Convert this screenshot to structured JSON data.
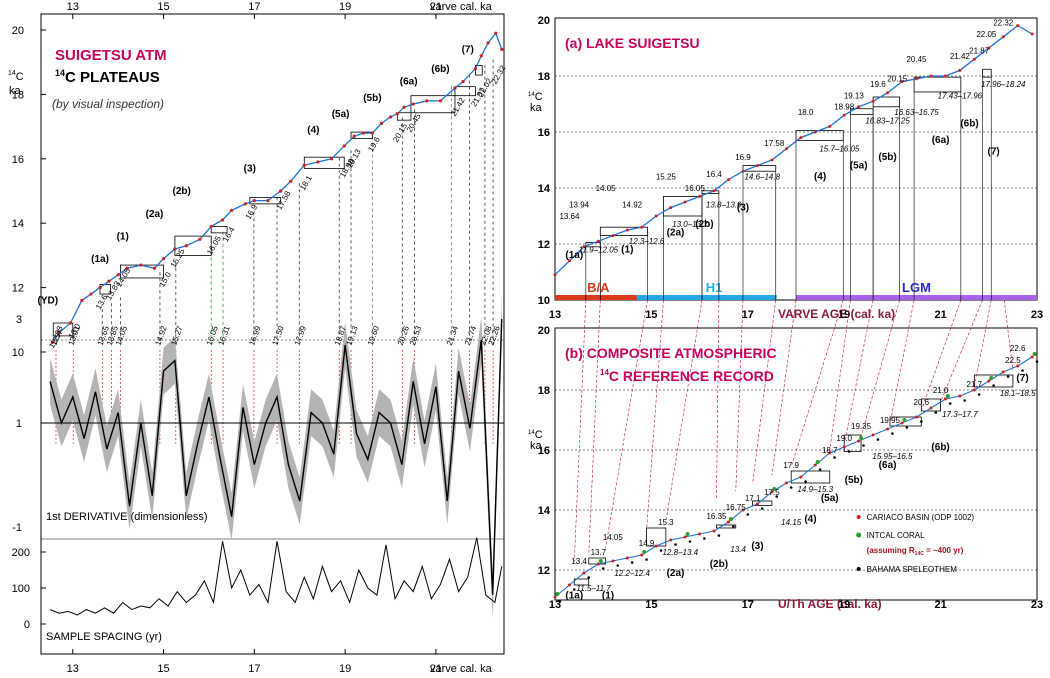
{
  "left": {
    "top_axis_label": "varve cal. ka",
    "bottom_axis_label": "varve cal. ka",
    "x_ticks": [
      "13",
      "15",
      "17",
      "19",
      "21"
    ],
    "y_ticks": [
      "10",
      "12",
      "14",
      "16",
      "18",
      "20"
    ],
    "y_unit_sup": "14",
    "y_unit_a": "C",
    "y_unit_b": "ka",
    "title1": "SUIGETSU  ATM",
    "title2_sup": "14",
    "title2_rest": "C PLATEAUS",
    "subtitle": "(by visual inspection)",
    "plateaus": [
      "(YD)",
      "(1a)",
      "(1)",
      "(2a)",
      "(2b)",
      "(3)",
      "(4)",
      "(5a)",
      "(5b)",
      "(6a)",
      "(6b)",
      "(7)"
    ],
    "boundary_labels": [
      "12.57",
      "13.0",
      "13.6",
      "13.83",
      "14.05",
      "15.0",
      "15.25",
      "16.05",
      "16.4",
      "16.9",
      "17.58",
      "18.1",
      "18.98",
      "19.13",
      "19.6",
      "20.15",
      "20.45",
      "21.42",
      "21.87",
      "22.02",
      "22.32"
    ],
    "deriv_labels": [
      "12.63",
      "13.01",
      "13.65",
      "13.85",
      "14.05",
      "14.92",
      "15.27",
      "16.05",
      "16.31",
      "16.99",
      "17.50",
      "17.99",
      "18.87",
      "19.13",
      "19.60",
      "20.26",
      "20.53",
      "21.34",
      "21.74",
      "22.08",
      "22.26"
    ],
    "deriv_ticks": [
      "3",
      "1",
      "-1"
    ],
    "deriv_label": "1st DERIVATIVE (dimensionless)",
    "spacing_ticks": [
      "200",
      "100",
      "0"
    ],
    "spacing_label": "SAMPLE SPACING (yr)"
  },
  "right": {
    "a_title": "(a)  LAKE SUIGETSU",
    "b_title1": "(b)  COMPOSITE  ATMOSPHERIC",
    "b_title2_sup": "14",
    "b_title2_rest": "C  REFERENCE  RECORD",
    "x_ticks": [
      "13",
      "15",
      "17",
      "19",
      "21",
      "23"
    ],
    "y_ticks_a": [
      "10",
      "12",
      "14",
      "16",
      "18",
      "20"
    ],
    "y_ticks_b": [
      "12",
      "14",
      "16",
      "18",
      "20"
    ],
    "y_unit_sup": "14",
    "y_unit_a": "C",
    "y_unit_b": "ka",
    "varve_axis": "VARVE AGE (cal. ka)",
    "uth_axis": "U/Th  AGE  (cal. ka)",
    "periods": [
      "B/A",
      "H1",
      "LGM"
    ],
    "a_plateaus": [
      "(1a)",
      "(1)",
      "(2a)",
      "(2b)",
      "(3)",
      "(4)",
      "(5a)",
      "(5b)",
      "(6a)",
      "(6b)",
      "(7)"
    ],
    "a_ages": [
      "13.64",
      "13.94",
      "14.05",
      "14.92",
      "15.25",
      "16.05",
      "16.4",
      "16.9",
      "17.58",
      "18.0",
      "18.98",
      "19.13",
      "19.6",
      "20.15",
      "20.45",
      "21.42",
      "21.87",
      "22.05",
      "22.32"
    ],
    "a_ranges": [
      "11.9–12.05",
      "12.3–12.6",
      "13.0–13.7",
      "13.8–13.9",
      "14.6–14.8",
      "15.7–16.05",
      "16.83–17.25",
      "16.63–16.75",
      "17.43–17.96",
      "17.96–18.24"
    ],
    "b_plateaus": [
      "(1a)",
      "(1)",
      "(2a)",
      "(2b)",
      "(3)",
      "(4)",
      "(5a)",
      "(5b)",
      "(6a)",
      "(6b)",
      "(7)"
    ],
    "b_ages": [
      "13.4",
      "13.7",
      "14.05",
      "14.9",
      "15.3",
      "16.35",
      "16.75",
      "17.1",
      "17.5",
      "17.9",
      "18.7",
      "19.0",
      "19.35",
      "19.95",
      "20.6",
      "21.0",
      "21.7",
      "22.5",
      "22.6"
    ],
    "b_ranges": [
      "11.5–11.7",
      "12.2–12.4",
      "12.8–13.4",
      "13.4",
      "14.15",
      "14.9–15.3",
      "15.95–16.5",
      "17.3–17.7",
      "18.1–18.5"
    ],
    "legend": [
      "CARIACO BASIN  (ODP 1002)",
      "INTCAL CORAL",
      "(assuming R",
      "= ~400 yr)",
      "BAHAMA SPELEOTHEM"
    ],
    "legend_sub": "14C"
  },
  "colors": {
    "title": "#c8005a",
    "series": "#1e6fd9",
    "points": "#cc2020",
    "green": "#2aa02a",
    "ba": "#d83a1a",
    "h1": "#27a7e6",
    "lgm": "#a862e6",
    "shade": "#b4b4b4"
  },
  "chart_data": [
    {
      "type": "line",
      "title": "SUIGETSU ATM 14C PLATEAUS",
      "xlabel": "varve cal. ka",
      "ylabel": "14C ka",
      "xlim": [
        12.3,
        22.5
      ],
      "ylim": [
        10,
        20
      ],
      "x": [
        12.55,
        12.7,
        12.95,
        13.2,
        13.4,
        13.6,
        13.8,
        14.0,
        14.2,
        14.5,
        14.8,
        15.0,
        15.25,
        15.5,
        15.8,
        16.05,
        16.3,
        16.5,
        16.8,
        17.0,
        17.3,
        17.58,
        17.8,
        18.1,
        18.4,
        18.7,
        18.98,
        19.2,
        19.4,
        19.6,
        19.8,
        20.0,
        20.15,
        20.3,
        20.5,
        20.8,
        21.1,
        21.42,
        21.6,
        21.87,
        22.0,
        22.15,
        22.32,
        22.45
      ],
      "series": [
        {
          "name": "",
          "values": [
            10.3,
            10.6,
            10.9,
            11.6,
            11.8,
            12.0,
            12.2,
            12.4,
            12.6,
            12.7,
            12.6,
            12.9,
            13.2,
            13.3,
            13.5,
            13.9,
            14.1,
            14.4,
            14.6,
            14.7,
            14.7,
            15.0,
            15.3,
            15.8,
            15.9,
            16.0,
            16.4,
            16.7,
            16.8,
            16.8,
            17.1,
            17.3,
            17.4,
            17.6,
            17.7,
            17.8,
            17.8,
            18.2,
            18.4,
            18.8,
            19.2,
            19.6,
            19.9,
            19.4
          ]
        }
      ]
    },
    {
      "type": "area",
      "title": "",
      "xlabel": "",
      "ylabel": "1st DERIVATIVE (dimensionless)",
      "xlim": [
        12.3,
        22.5
      ],
      "ylim": [
        -2.5,
        3.2
      ],
      "x": [
        12.5,
        12.75,
        13.0,
        13.25,
        13.5,
        13.75,
        14.0,
        14.25,
        14.5,
        14.75,
        15.0,
        15.25,
        15.5,
        15.75,
        16.0,
        16.25,
        16.5,
        16.75,
        17.0,
        17.25,
        17.5,
        17.75,
        18.0,
        18.25,
        18.5,
        18.75,
        19.0,
        19.25,
        19.5,
        19.75,
        20.0,
        20.25,
        20.5,
        20.75,
        21.0,
        21.25,
        21.5,
        21.75,
        22.0,
        22.25,
        22.45
      ],
      "series": [
        {
          "name": "",
          "values": [
            1.8,
            1.0,
            1.5,
            0.7,
            1.6,
            0.5,
            1.2,
            -0.6,
            1.0,
            -0.4,
            2.0,
            2.2,
            -0.4,
            0.6,
            1.5,
            0.3,
            -0.8,
            1.3,
            0.2,
            1.0,
            1.5,
            0.2,
            -0.5,
            1.2,
            1.0,
            0.4,
            2.5,
            0.8,
            0.3,
            1.2,
            1.0,
            0.2,
            1.8,
            0.6,
            1.7,
            -0.5,
            2.0,
            0.9,
            2.6,
            -2.3,
            3.0
          ]
        }
      ]
    },
    {
      "type": "line",
      "title": "",
      "xlabel": "varve cal. ka",
      "ylabel": "SAMPLE SPACING (yr)",
      "xlim": [
        12.3,
        22.5
      ],
      "ylim": [
        0,
        250
      ],
      "x": [
        12.5,
        12.7,
        12.9,
        13.1,
        13.3,
        13.5,
        13.7,
        13.9,
        14.1,
        14.3,
        14.5,
        14.7,
        14.9,
        15.1,
        15.3,
        15.5,
        15.7,
        15.9,
        16.1,
        16.3,
        16.5,
        16.7,
        16.9,
        17.1,
        17.3,
        17.5,
        17.7,
        17.9,
        18.1,
        18.3,
        18.5,
        18.7,
        18.9,
        19.1,
        19.3,
        19.5,
        19.7,
        19.9,
        20.1,
        20.3,
        20.5,
        20.7,
        20.9,
        21.1,
        21.3,
        21.5,
        21.7,
        21.9,
        22.1,
        22.3,
        22.45
      ],
      "series": [
        {
          "name": "",
          "values": [
            40,
            30,
            35,
            25,
            40,
            30,
            45,
            30,
            60,
            40,
            50,
            45,
            70,
            50,
            90,
            60,
            80,
            120,
            60,
            230,
            100,
            150,
            80,
            110,
            60,
            230,
            90,
            60,
            130,
            70,
            160,
            90,
            120,
            60,
            150,
            100,
            80,
            220,
            70,
            120,
            90,
            160,
            70,
            110,
            180,
            90,
            130,
            240,
            80,
            60,
            160
          ]
        }
      ]
    },
    {
      "type": "line",
      "title": "(a) LAKE SUIGETSU",
      "xlabel": "VARVE AGE (cal. ka)",
      "ylabel": "14C ka",
      "xlim": [
        13,
        23
      ],
      "ylim": [
        10,
        20
      ],
      "x": [
        13.0,
        13.3,
        13.6,
        13.9,
        14.2,
        14.5,
        14.8,
        15.1,
        15.4,
        15.7,
        16.0,
        16.3,
        16.6,
        16.9,
        17.2,
        17.5,
        17.8,
        18.1,
        18.4,
        18.7,
        19.0,
        19.3,
        19.6,
        19.9,
        20.2,
        20.5,
        20.8,
        21.1,
        21.4,
        21.7,
        22.0,
        22.3,
        22.6,
        22.9
      ],
      "series": [
        {
          "name": "",
          "values": [
            10.9,
            11.4,
            11.9,
            12.1,
            12.3,
            12.5,
            12.6,
            13.0,
            13.3,
            13.5,
            13.7,
            13.9,
            14.3,
            14.6,
            14.8,
            15.0,
            15.4,
            15.8,
            16.0,
            16.2,
            16.6,
            16.9,
            17.1,
            17.4,
            17.8,
            17.9,
            18.0,
            18.0,
            18.2,
            18.6,
            19.0,
            19.4,
            19.8,
            19.5
          ]
        }
      ]
    },
    {
      "type": "scatter",
      "title": "(b) COMPOSITE ATMOSPHERIC 14C REFERENCE RECORD",
      "xlabel": "U/Th AGE (cal. ka)",
      "ylabel": "14C ka",
      "xlim": [
        13,
        23
      ],
      "ylim": [
        11,
        20
      ],
      "x": [
        13.0,
        13.3,
        13.6,
        13.9,
        14.2,
        14.5,
        14.8,
        15.1,
        15.4,
        15.7,
        16.0,
        16.3,
        16.6,
        16.9,
        17.2,
        17.5,
        17.8,
        18.1,
        18.4,
        18.7,
        19.0,
        19.3,
        19.6,
        19.9,
        20.2,
        20.5,
        20.8,
        21.1,
        21.4,
        21.7,
        22.0,
        22.3,
        22.6,
        22.9
      ],
      "series": [
        {
          "name": "CARIACO BASIN  (ODP 1002)",
          "values": [
            11.1,
            11.5,
            11.9,
            12.2,
            12.3,
            12.4,
            12.5,
            12.8,
            13.0,
            13.1,
            13.2,
            13.3,
            13.6,
            14.0,
            14.2,
            14.6,
            14.9,
            15.1,
            15.5,
            15.9,
            16.1,
            16.3,
            16.5,
            16.7,
            16.9,
            17.1,
            17.4,
            17.7,
            17.8,
            18.0,
            18.3,
            18.6,
            18.8,
            19.1
          ]
        }
      ]
    }
  ]
}
